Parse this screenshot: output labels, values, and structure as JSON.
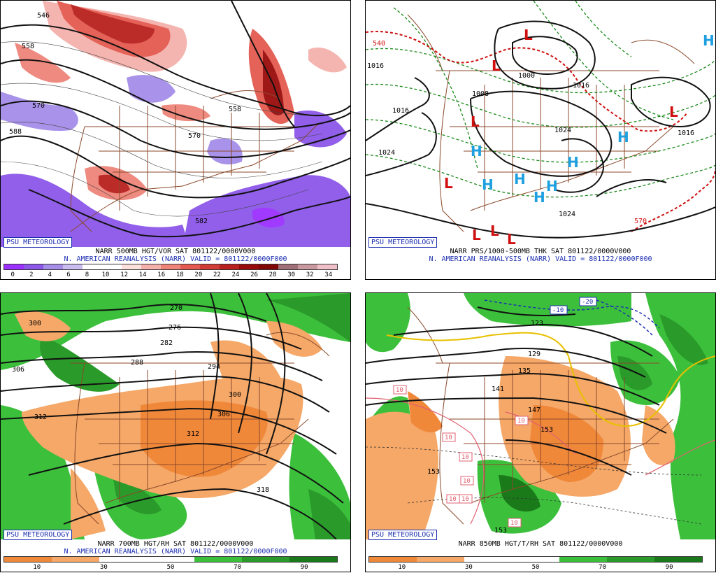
{
  "panels": [
    {
      "badge": "PSU METEOROLOGY",
      "caption1": "NARR 500MB HGT/VOR SAT 801122/0000V000",
      "caption2": "N. AMERICAN REANALYSIS (NARR) VALID = 801122/0000F000",
      "legend_ticks": [
        "0",
        "2",
        "4",
        "6",
        "8",
        "10",
        "12",
        "14",
        "16",
        "18",
        "20",
        "22",
        "24",
        "26",
        "28",
        "30",
        "32",
        "34"
      ],
      "legend_colors": [
        "#9b30ff",
        "#8c57e8",
        "#a58de8",
        "#c9bdf0",
        "#ffffff",
        "#ffffff",
        "#fbe0dc",
        "#f4b1ab",
        "#ee8479",
        "#e35a50",
        "#d23c36",
        "#b8211d",
        "#9a0c0c",
        "#820808",
        "#a07078",
        "#c89aa0",
        "#f0c0c8"
      ],
      "contour_labels": [
        "546",
        "558",
        "570",
        "588",
        "570",
        "582",
        "558"
      ]
    },
    {
      "badge": "PSU METEOROLOGY",
      "caption1": "NARR PRS/1000-500MB THK SAT 801122/0000V000",
      "caption2": "N. AMERICAN REANALYSIS (NARR) VALID = 801122/0000F000",
      "contour_labels": [
        "540",
        "1016",
        "1016",
        "1024",
        "1000",
        "1008",
        "1016",
        "1024",
        "1024",
        "1016",
        "570"
      ],
      "high_marks": [
        "H",
        "H",
        "H",
        "H",
        "H",
        "H",
        "H",
        "H"
      ],
      "low_marks": [
        "L",
        "L",
        "L",
        "L",
        "L",
        "L",
        "L",
        "L"
      ]
    },
    {
      "badge": "PSU METEOROLOGY",
      "caption1": "NARR 700MB HGT/RH SAT 801122/0000V000",
      "caption2": "N. AMERICAN REANALYSIS (NARR) VALID = 801122/0000F000",
      "legend_ticks": [
        "10",
        "30",
        "50",
        "70",
        "90"
      ],
      "legend_colors": [
        "#f0883a",
        "#f5a868",
        "#ffffff",
        "#ffffff",
        "#3cc03c",
        "#2a9a2a",
        "#1a7a1a"
      ],
      "contour_labels": [
        "270",
        "276",
        "282",
        "288",
        "294",
        "300",
        "300",
        "306",
        "306",
        "312",
        "312",
        "318"
      ]
    },
    {
      "badge": "PSU METEOROLOGY",
      "caption1": "NARR 850MB HGT/T/RH SAT 801122/0000V000",
      "legend_ticks": [
        "10",
        "30",
        "50",
        "70",
        "90"
      ],
      "legend_colors": [
        "#f0883a",
        "#f5a868",
        "#ffffff",
        "#ffffff",
        "#3cc03c",
        "#2a9a2a",
        "#1a7a1a"
      ],
      "contour_labels": [
        "123",
        "129",
        "135",
        "141",
        "147",
        "153",
        "153",
        "153"
      ],
      "temp_labels": [
        "-10",
        "-20",
        "10",
        "10",
        "10",
        "10",
        "10",
        "10",
        "10",
        "10"
      ]
    }
  ],
  "colors": {
    "border_map": "#8b4a2b",
    "contour": "#111111",
    "caption_blue": "#1d2fb0",
    "high": "#1ea0e0",
    "low": "#d01010",
    "thickness_green": "#1a8a1a",
    "thickness_red": "#d01010"
  }
}
